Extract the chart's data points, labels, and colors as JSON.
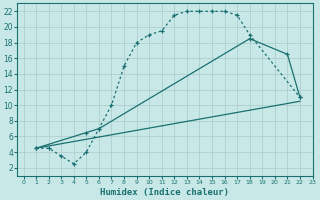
{
  "xlabel": "Humidex (Indice chaleur)",
  "xlim": [
    -0.5,
    23
  ],
  "ylim": [
    1,
    23
  ],
  "xticks": [
    0,
    1,
    2,
    3,
    4,
    5,
    6,
    7,
    8,
    9,
    10,
    11,
    12,
    13,
    14,
    15,
    16,
    17,
    18,
    19,
    20,
    21,
    22,
    23
  ],
  "yticks": [
    2,
    4,
    6,
    8,
    10,
    12,
    14,
    16,
    18,
    20,
    22
  ],
  "bg_color": "#c8e8e8",
  "line_color": "#1a7070",
  "grid_color": "#b0d0d0",
  "line1_x": [
    1,
    2,
    3,
    4,
    5,
    6,
    7,
    8,
    9,
    10,
    11,
    12,
    13,
    14,
    15,
    16,
    17,
    18,
    22
  ],
  "line1_y": [
    4.5,
    4.5,
    3.5,
    2.5,
    4.0,
    7.0,
    10.0,
    15.0,
    18.0,
    19.0,
    19.5,
    21.5,
    22.0,
    22.0,
    22.0,
    22.0,
    21.5,
    19.0,
    11.0
  ],
  "line2_x": [
    1,
    5,
    6,
    18,
    21,
    22
  ],
  "line2_y": [
    4.5,
    6.5,
    7.0,
    18.5,
    16.5,
    11.0
  ],
  "line3_x": [
    1,
    22
  ],
  "line3_y": [
    4.5,
    10.5
  ],
  "line1_style": "dotted",
  "line2_style": "solid",
  "line3_style": "solid"
}
